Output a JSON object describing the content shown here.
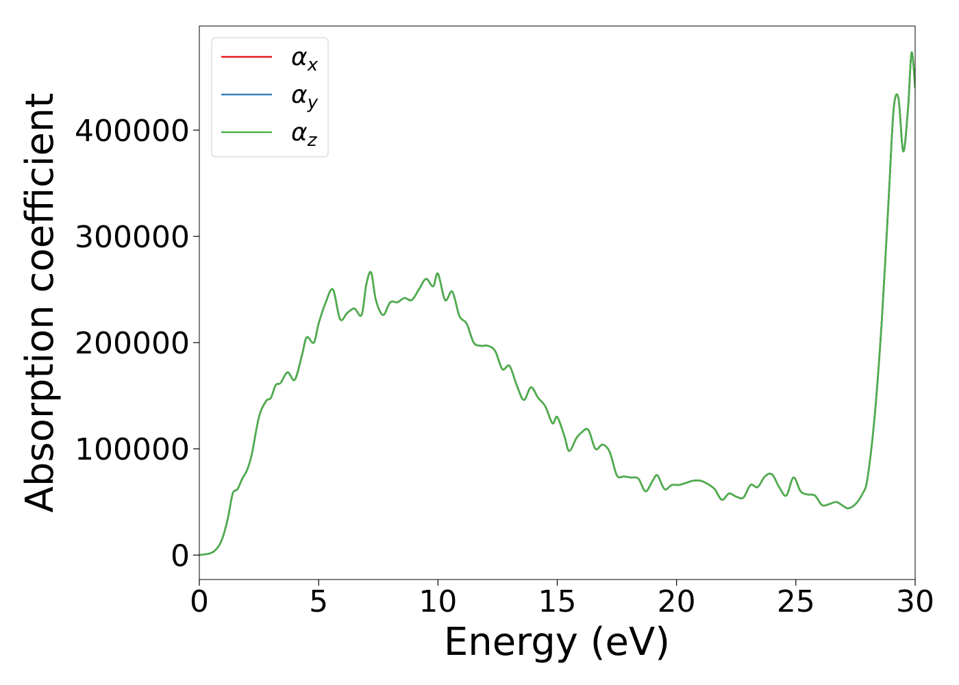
{
  "chart_data": {
    "type": "line",
    "xlabel": "Energy (eV)",
    "ylabel": "Absorption coefficient",
    "xlim": [
      0,
      30
    ],
    "ylim": [
      -23000,
      498000
    ],
    "xticks": [
      0,
      5,
      10,
      15,
      20,
      25,
      30
    ],
    "xtick_labels": [
      "0",
      "5",
      "10",
      "15",
      "20",
      "25",
      "30"
    ],
    "yticks": [
      0,
      100000,
      200000,
      300000,
      400000
    ],
    "ytick_labels": [
      "0",
      "100000",
      "200000",
      "300000",
      "400000"
    ],
    "grid": false,
    "legend_position": "top-left",
    "x": [
      0,
      0.5,
      0.8,
      1.0,
      1.2,
      1.4,
      1.6,
      1.8,
      2.0,
      2.2,
      2.5,
      2.8,
      3.0,
      3.2,
      3.4,
      3.7,
      4.0,
      4.3,
      4.5,
      4.8,
      5.0,
      5.3,
      5.6,
      5.9,
      6.2,
      6.5,
      6.8,
      7.0,
      7.2,
      7.4,
      7.7,
      8.0,
      8.3,
      8.6,
      8.9,
      9.2,
      9.5,
      9.8,
      10.0,
      10.3,
      10.6,
      10.9,
      11.2,
      11.5,
      11.8,
      12.1,
      12.4,
      12.7,
      13.0,
      13.3,
      13.6,
      13.9,
      14.2,
      14.5,
      14.8,
      15.0,
      15.3,
      15.5,
      15.8,
      16.0,
      16.3,
      16.6,
      16.9,
      17.2,
      17.5,
      17.8,
      18.1,
      18.4,
      18.7,
      19.0,
      19.2,
      19.5,
      19.8,
      20.1,
      20.4,
      20.7,
      21.0,
      21.3,
      21.6,
      21.9,
      22.2,
      22.5,
      22.8,
      23.1,
      23.4,
      23.7,
      24.0,
      24.3,
      24.6,
      24.9,
      25.2,
      25.5,
      25.8,
      26.1,
      26.4,
      26.7,
      27.0,
      27.2,
      27.5,
      27.8,
      28.0,
      28.3,
      28.6,
      28.9,
      29.1,
      29.3,
      29.5,
      29.7,
      29.85,
      30.0
    ],
    "series": [
      {
        "name": "αx",
        "color": "#e41a1c",
        "y": [
          0,
          2000,
          8000,
          18000,
          35000,
          58000,
          62000,
          72000,
          80000,
          95000,
          130000,
          145000,
          148000,
          160000,
          162000,
          172000,
          165000,
          188000,
          205000,
          200000,
          218000,
          238000,
          250000,
          222000,
          228000,
          232000,
          226000,
          255000,
          266000,
          240000,
          226000,
          238000,
          238000,
          242000,
          240000,
          250000,
          260000,
          253000,
          265000,
          240000,
          248000,
          225000,
          218000,
          200000,
          197000,
          197000,
          192000,
          175000,
          178000,
          160000,
          146000,
          158000,
          148000,
          140000,
          124000,
          130000,
          112000,
          98000,
          110000,
          115000,
          118000,
          100000,
          104000,
          97000,
          75000,
          74000,
          73000,
          72000,
          60000,
          70000,
          75000,
          62000,
          66000,
          66000,
          68000,
          70000,
          70000,
          67000,
          62000,
          52000,
          58000,
          55000,
          54000,
          66000,
          64000,
          74000,
          76000,
          64000,
          56000,
          73000,
          60000,
          57000,
          56000,
          47000,
          48000,
          50000,
          46000,
          44000,
          48000,
          58000,
          72000,
          130000,
          220000,
          340000,
          420000,
          430000,
          380000,
          420000,
          473000,
          440000
        ]
      },
      {
        "name": "αy",
        "color": "#377eb8",
        "y": [
          0,
          2000,
          8000,
          18000,
          35000,
          58000,
          62000,
          72000,
          80000,
          95000,
          130000,
          145000,
          148000,
          160000,
          162000,
          172000,
          165000,
          188000,
          205000,
          200000,
          218000,
          238000,
          250000,
          222000,
          228000,
          232000,
          226000,
          255000,
          266000,
          240000,
          226000,
          238000,
          238000,
          242000,
          240000,
          250000,
          260000,
          253000,
          265000,
          240000,
          248000,
          225000,
          218000,
          200000,
          197000,
          197000,
          192000,
          175000,
          178000,
          160000,
          146000,
          158000,
          148000,
          140000,
          124000,
          130000,
          112000,
          98000,
          110000,
          115000,
          118000,
          100000,
          104000,
          97000,
          75000,
          74000,
          73000,
          72000,
          60000,
          70000,
          75000,
          62000,
          66000,
          66000,
          68000,
          70000,
          70000,
          67000,
          62000,
          52000,
          58000,
          55000,
          54000,
          66000,
          64000,
          74000,
          76000,
          64000,
          56000,
          73000,
          60000,
          57000,
          56000,
          47000,
          48000,
          50000,
          46000,
          44000,
          48000,
          58000,
          72000,
          130000,
          220000,
          340000,
          420000,
          430000,
          380000,
          420000,
          473000,
          440000
        ]
      },
      {
        "name": "αz",
        "color": "#4daf4a",
        "y": [
          0,
          2000,
          8000,
          18000,
          35000,
          58000,
          62000,
          72000,
          80000,
          95000,
          130000,
          145000,
          148000,
          160000,
          162000,
          172000,
          165000,
          188000,
          205000,
          200000,
          218000,
          238000,
          250000,
          222000,
          228000,
          232000,
          226000,
          255000,
          266000,
          240000,
          226000,
          238000,
          238000,
          242000,
          240000,
          250000,
          260000,
          253000,
          265000,
          240000,
          248000,
          225000,
          218000,
          200000,
          197000,
          197000,
          192000,
          175000,
          178000,
          160000,
          146000,
          158000,
          148000,
          140000,
          124000,
          130000,
          112000,
          98000,
          110000,
          115000,
          118000,
          100000,
          104000,
          97000,
          75000,
          74000,
          73000,
          72000,
          60000,
          70000,
          75000,
          62000,
          66000,
          66000,
          68000,
          70000,
          70000,
          67000,
          62000,
          52000,
          58000,
          55000,
          54000,
          66000,
          64000,
          74000,
          76000,
          64000,
          56000,
          73000,
          60000,
          57000,
          56000,
          47000,
          48000,
          50000,
          46000,
          44000,
          48000,
          58000,
          72000,
          130000,
          220000,
          340000,
          420000,
          430000,
          380000,
          420000,
          473000,
          440000
        ]
      }
    ],
    "legend": [
      {
        "symbol": "α",
        "subscript": "x",
        "color": "#e41a1c"
      },
      {
        "symbol": "α",
        "subscript": "y",
        "color": "#377eb8"
      },
      {
        "symbol": "α",
        "subscript": "z",
        "color": "#4daf4a"
      }
    ]
  }
}
